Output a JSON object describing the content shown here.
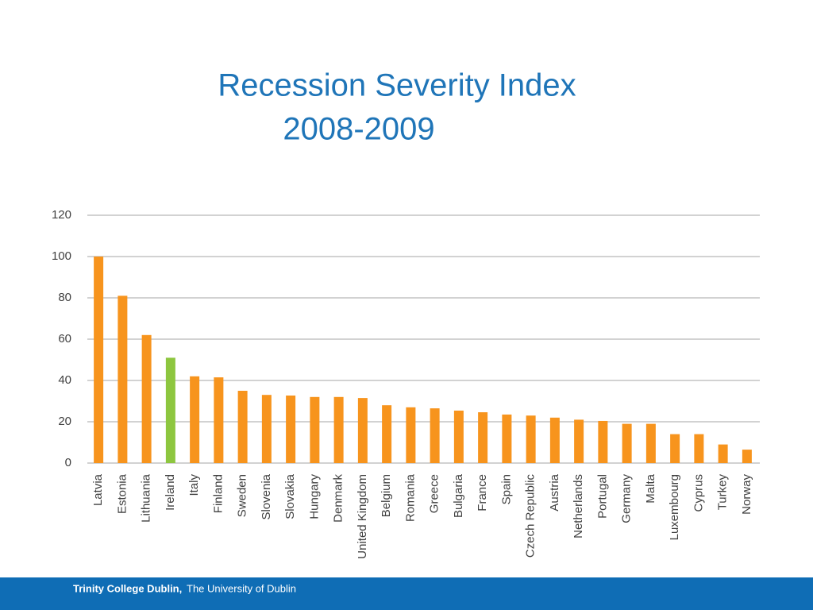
{
  "chart_data": {
    "type": "bar",
    "title": "Recession Severity Index",
    "subtitle": "2008-2009",
    "categories": [
      "Latvia",
      "Estonia",
      "Lithuania",
      "Ireland",
      "Italy",
      "Finland",
      "Sweden",
      "Slovenia",
      "Slovakia",
      "Hungary",
      "Denmark",
      "United Kingdom",
      "Belgium",
      "Romania",
      "Greece",
      "Bulgaria",
      "France",
      "Spain",
      "Czech Republic",
      "Austria",
      "Netherlands",
      "Portugal",
      "Germany",
      "Malta",
      "Luxembourg",
      "Cyprus",
      "Turkey",
      "Norway"
    ],
    "values": [
      100,
      81,
      62,
      51,
      42,
      41.5,
      35,
      33,
      32.7,
      32,
      32,
      31.5,
      28,
      27,
      26.5,
      25.4,
      24.6,
      23.5,
      23,
      22,
      21,
      20.4,
      19,
      19,
      14,
      14,
      9,
      6.5
    ],
    "colors": [
      "#f7941d",
      "#f7941d",
      "#f7941d",
      "#8dc63f",
      "#f7941d",
      "#f7941d",
      "#f7941d",
      "#f7941d",
      "#f7941d",
      "#f7941d",
      "#f7941d",
      "#f7941d",
      "#f7941d",
      "#f7941d",
      "#f7941d",
      "#f7941d",
      "#f7941d",
      "#f7941d",
      "#f7941d",
      "#f7941d",
      "#f7941d",
      "#f7941d",
      "#f7941d",
      "#f7941d",
      "#f7941d",
      "#f7941d",
      "#f7941d",
      "#f7941d"
    ],
    "ylim": [
      0,
      120
    ],
    "yticks": [
      0,
      20,
      40,
      60,
      80,
      100,
      120
    ],
    "grid": true
  },
  "footer": {
    "institution": "Trinity College Dublin,",
    "university": "The University of Dublin"
  }
}
